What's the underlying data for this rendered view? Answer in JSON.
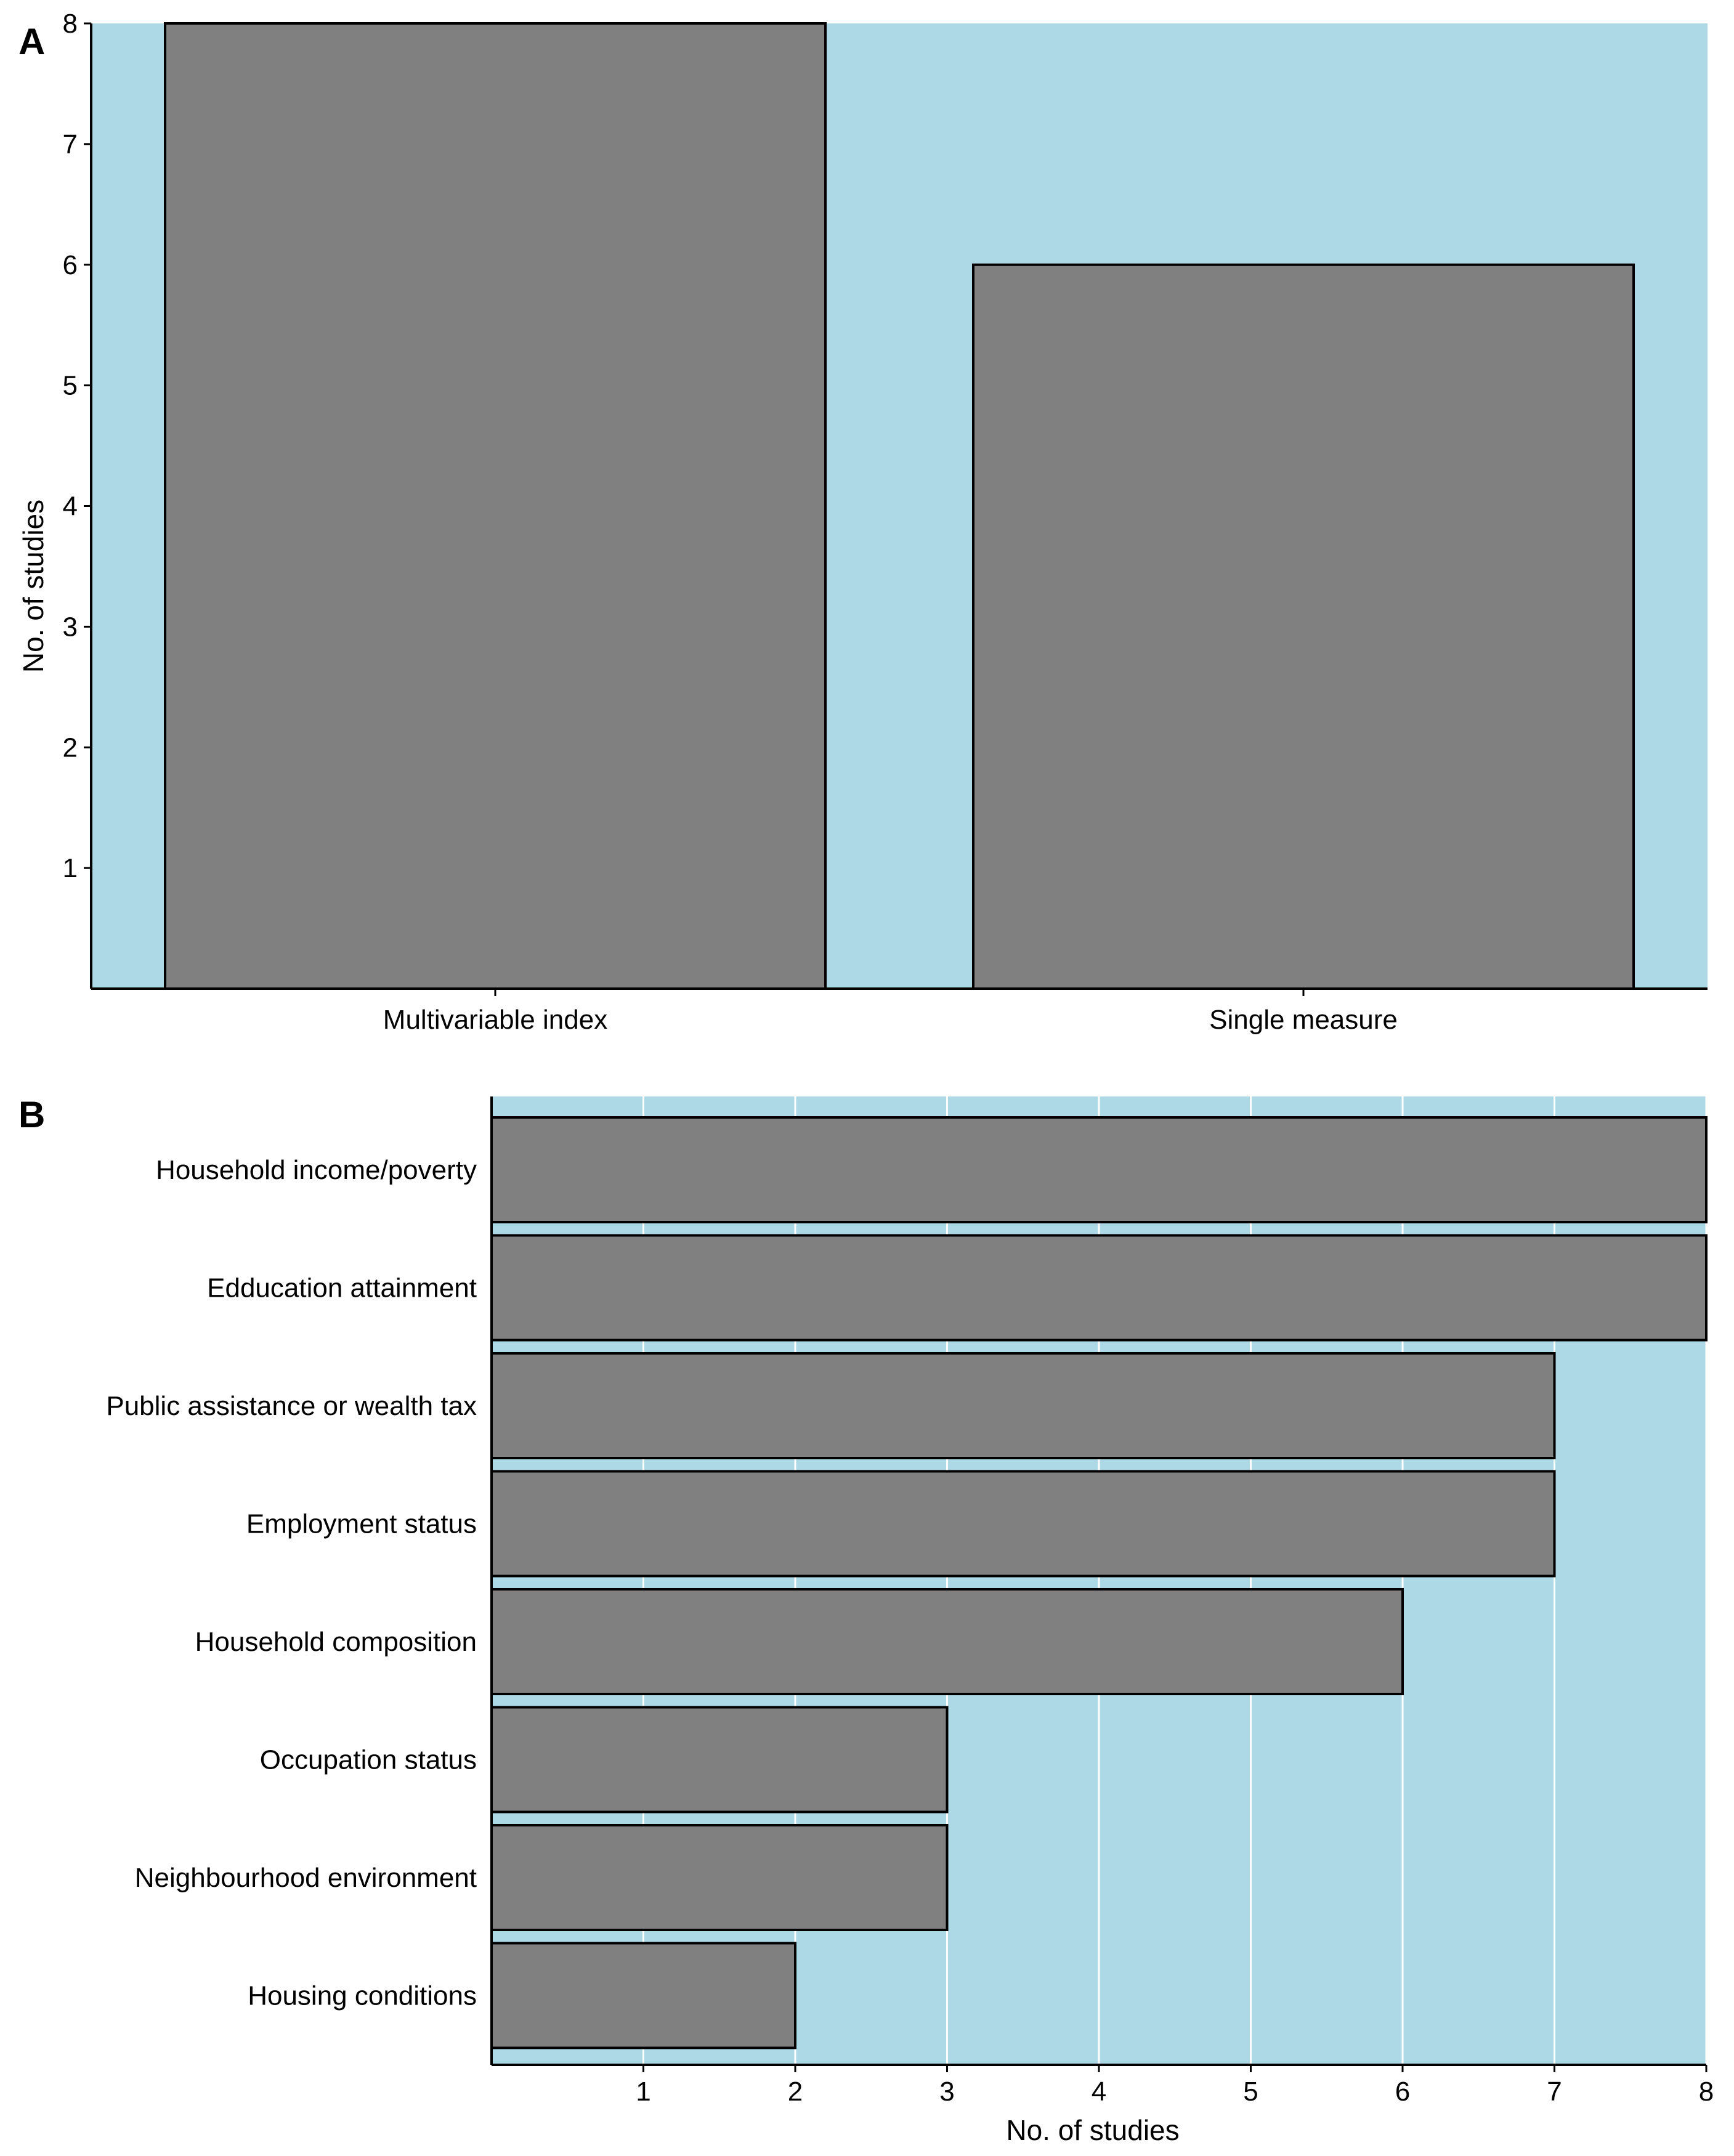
{
  "chart_data": [
    {
      "panel": "A",
      "type": "bar",
      "orientation": "vertical",
      "categories": [
        "Multivariable index",
        "Single measure"
      ],
      "values": [
        8,
        6
      ],
      "title": "",
      "xlabel": "",
      "ylabel": "No. of studies",
      "ylim": [
        0,
        8
      ],
      "yticks": [
        1,
        2,
        3,
        4,
        5,
        6,
        7,
        8
      ],
      "grid": false,
      "colors": {
        "background": "#add8e6",
        "bar": "#808080",
        "edge": "#000000"
      }
    },
    {
      "panel": "B",
      "type": "bar",
      "orientation": "horizontal",
      "categories": [
        "Household income/poverty",
        "Edducation attainment",
        "Public assistance or wealth tax",
        "Employment status",
        "Household composition",
        "Occupation status",
        "Neighbourhood environment",
        "Housing conditions"
      ],
      "values": [
        8,
        8,
        7,
        7,
        6,
        3,
        3,
        2
      ],
      "title": "",
      "xlabel": "No. of studies",
      "ylabel": "",
      "xlim": [
        0,
        8
      ],
      "xticks": [
        1,
        2,
        3,
        4,
        5,
        6,
        7,
        8
      ],
      "grid": true,
      "colors": {
        "background": "#add8e6",
        "bar": "#808080",
        "edge": "#000000",
        "grid": "#ffffff"
      }
    }
  ]
}
